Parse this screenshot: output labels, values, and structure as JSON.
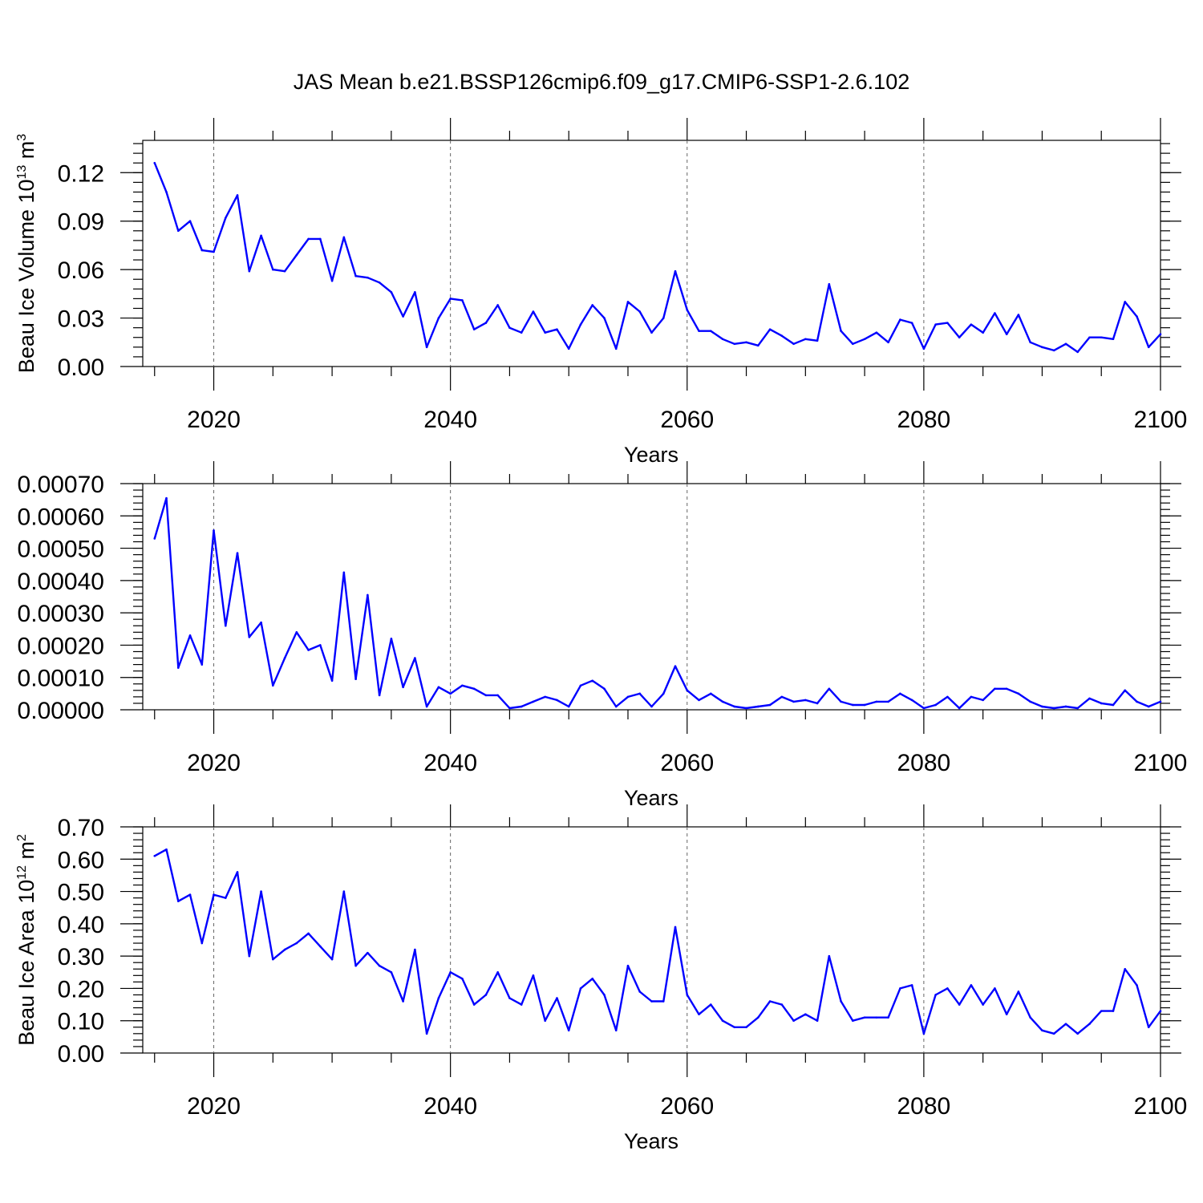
{
  "title": "JAS Mean b.e21.BSSP126cmip6.f09_g17.CMIP6-SSP1-2.6.102",
  "colors": {
    "series": "#0000ff",
    "grid": "#666666",
    "frame": "#000000"
  },
  "chart_data": [
    {
      "type": "line",
      "ylabel": "Beau Ice Volume 10",
      "ylabel_sup": "13",
      "ylabel_unit": " m",
      "ylabel_unit_sup": "3",
      "xlabel": "Years",
      "xlim": [
        2014,
        2100
      ],
      "ylim": [
        0,
        0.14
      ],
      "xticks": [
        2020,
        2040,
        2060,
        2080,
        2100
      ],
      "xtick_labels": [
        "2020",
        "2040",
        "2060",
        "2080",
        "2100"
      ],
      "yticks": [
        0,
        0.03,
        0.06,
        0.09,
        0.12
      ],
      "ytick_labels": [
        "0.00",
        "0.03",
        "0.06",
        "0.09",
        "0.12"
      ],
      "grid": "x-dashed",
      "x": [
        2015,
        2016,
        2017,
        2018,
        2019,
        2020,
        2021,
        2022,
        2023,
        2024,
        2025,
        2026,
        2027,
        2028,
        2029,
        2030,
        2031,
        2032,
        2033,
        2034,
        2035,
        2036,
        2037,
        2038,
        2039,
        2040,
        2041,
        2042,
        2043,
        2044,
        2045,
        2046,
        2047,
        2048,
        2049,
        2050,
        2051,
        2052,
        2053,
        2054,
        2055,
        2056,
        2057,
        2058,
        2059,
        2060,
        2061,
        2062,
        2063,
        2064,
        2065,
        2066,
        2067,
        2068,
        2069,
        2070,
        2071,
        2072,
        2073,
        2074,
        2075,
        2076,
        2077,
        2078,
        2079,
        2080,
        2081,
        2082,
        2083,
        2084,
        2085,
        2086,
        2087,
        2088,
        2089,
        2090,
        2091,
        2092,
        2093,
        2094,
        2095,
        2096,
        2097,
        2098,
        2099,
        2100
      ],
      "values": [
        0.126,
        0.108,
        0.084,
        0.09,
        0.072,
        0.071,
        0.092,
        0.106,
        0.059,
        0.081,
        0.06,
        0.059,
        0.069,
        0.079,
        0.079,
        0.053,
        0.08,
        0.056,
        0.055,
        0.052,
        0.046,
        0.031,
        0.046,
        0.012,
        0.03,
        0.042,
        0.041,
        0.023,
        0.027,
        0.038,
        0.024,
        0.021,
        0.034,
        0.021,
        0.023,
        0.011,
        0.026,
        0.038,
        0.03,
        0.011,
        0.04,
        0.034,
        0.021,
        0.03,
        0.059,
        0.035,
        0.022,
        0.022,
        0.017,
        0.014,
        0.015,
        0.013,
        0.023,
        0.019,
        0.014,
        0.017,
        0.016,
        0.051,
        0.022,
        0.014,
        0.017,
        0.021,
        0.015,
        0.029,
        0.027,
        0.011,
        0.026,
        0.027,
        0.018,
        0.026,
        0.021,
        0.033,
        0.02,
        0.032,
        0.015,
        0.012,
        0.01,
        0.014,
        0.009,
        0.018,
        0.018,
        0.017,
        0.04,
        0.031,
        0.012,
        0.02
      ]
    },
    {
      "type": "line",
      "ylabel": "",
      "xlabel": "Years",
      "xlim": [
        2014,
        2100
      ],
      "ylim": [
        0,
        0.0007
      ],
      "xticks": [
        2020,
        2040,
        2060,
        2080,
        2100
      ],
      "xtick_labels": [
        "2020",
        "2040",
        "2060",
        "2080",
        "2100"
      ],
      "yticks": [
        0,
        0.0001,
        0.0002,
        0.0003,
        0.0004,
        0.0005,
        0.0006,
        0.0007
      ],
      "ytick_labels": [
        "0.00000",
        "0.00010",
        "0.00020",
        "0.00030",
        "0.00040",
        "0.00050",
        "0.00060",
        "0.00070"
      ],
      "grid": "x-dashed",
      "x": [
        2015,
        2016,
        2017,
        2018,
        2019,
        2020,
        2021,
        2022,
        2023,
        2024,
        2025,
        2026,
        2027,
        2028,
        2029,
        2030,
        2031,
        2032,
        2033,
        2034,
        2035,
        2036,
        2037,
        2038,
        2039,
        2040,
        2041,
        2042,
        2043,
        2044,
        2045,
        2046,
        2047,
        2048,
        2049,
        2050,
        2051,
        2052,
        2053,
        2054,
        2055,
        2056,
        2057,
        2058,
        2059,
        2060,
        2061,
        2062,
        2063,
        2064,
        2065,
        2066,
        2067,
        2068,
        2069,
        2070,
        2071,
        2072,
        2073,
        2074,
        2075,
        2076,
        2077,
        2078,
        2079,
        2080,
        2081,
        2082,
        2083,
        2084,
        2085,
        2086,
        2087,
        2088,
        2089,
        2090,
        2091,
        2092,
        2093,
        2094,
        2095,
        2096,
        2097,
        2098,
        2099,
        2100
      ],
      "values": [
        0.00053,
        0.000655,
        0.00013,
        0.00023,
        0.00014,
        0.000555,
        0.00026,
        0.000485,
        0.000225,
        0.00027,
        7.5e-05,
        0.00016,
        0.00024,
        0.000185,
        0.0002,
        9e-05,
        0.000425,
        9.5e-05,
        0.000355,
        4.5e-05,
        0.00022,
        7e-05,
        0.00016,
        1e-05,
        7e-05,
        5e-05,
        7.5e-05,
        6.5e-05,
        4.5e-05,
        4.5e-05,
        5e-06,
        1e-05,
        2.5e-05,
        4e-05,
        3e-05,
        1e-05,
        7.5e-05,
        9e-05,
        6.5e-05,
        1e-05,
        4e-05,
        5e-05,
        1e-05,
        5e-05,
        0.000135,
        6e-05,
        3e-05,
        5e-05,
        2.5e-05,
        1e-05,
        5e-06,
        1e-05,
        1.5e-05,
        4e-05,
        2.5e-05,
        3e-05,
        2e-05,
        6.5e-05,
        2.5e-05,
        1.5e-05,
        1.5e-05,
        2.5e-05,
        2.5e-05,
        5e-05,
        3e-05,
        5e-06,
        1.5e-05,
        4e-05,
        5e-06,
        4e-05,
        3e-05,
        6.5e-05,
        6.5e-05,
        5e-05,
        2.5e-05,
        1e-05,
        5e-06,
        1e-05,
        5e-06,
        3.5e-05,
        2e-05,
        1.5e-05,
        6e-05,
        2.5e-05,
        1e-05,
        2.5e-05
      ]
    },
    {
      "type": "line",
      "ylabel": "Beau Ice Area 10",
      "ylabel_sup": "12",
      "ylabel_unit": " m",
      "ylabel_unit_sup": "2",
      "xlabel": "Years",
      "xlim": [
        2014,
        2100
      ],
      "ylim": [
        0,
        0.7
      ],
      "xticks": [
        2020,
        2040,
        2060,
        2080,
        2100
      ],
      "xtick_labels": [
        "2020",
        "2040",
        "2060",
        "2080",
        "2100"
      ],
      "yticks": [
        0,
        0.1,
        0.2,
        0.3,
        0.4,
        0.5,
        0.6,
        0.7
      ],
      "ytick_labels": [
        "0.00",
        "0.10",
        "0.20",
        "0.30",
        "0.40",
        "0.50",
        "0.60",
        "0.70"
      ],
      "grid": "x-dashed",
      "x": [
        2015,
        2016,
        2017,
        2018,
        2019,
        2020,
        2021,
        2022,
        2023,
        2024,
        2025,
        2026,
        2027,
        2028,
        2029,
        2030,
        2031,
        2032,
        2033,
        2034,
        2035,
        2036,
        2037,
        2038,
        2039,
        2040,
        2041,
        2042,
        2043,
        2044,
        2045,
        2046,
        2047,
        2048,
        2049,
        2050,
        2051,
        2052,
        2053,
        2054,
        2055,
        2056,
        2057,
        2058,
        2059,
        2060,
        2061,
        2062,
        2063,
        2064,
        2065,
        2066,
        2067,
        2068,
        2069,
        2070,
        2071,
        2072,
        2073,
        2074,
        2075,
        2076,
        2077,
        2078,
        2079,
        2080,
        2081,
        2082,
        2083,
        2084,
        2085,
        2086,
        2087,
        2088,
        2089,
        2090,
        2091,
        2092,
        2093,
        2094,
        2095,
        2096,
        2097,
        2098,
        2099,
        2100
      ],
      "values": [
        0.61,
        0.63,
        0.47,
        0.49,
        0.34,
        0.49,
        0.48,
        0.56,
        0.3,
        0.5,
        0.29,
        0.32,
        0.34,
        0.37,
        0.33,
        0.29,
        0.5,
        0.27,
        0.31,
        0.27,
        0.25,
        0.16,
        0.32,
        0.06,
        0.17,
        0.25,
        0.23,
        0.15,
        0.18,
        0.25,
        0.17,
        0.15,
        0.24,
        0.1,
        0.17,
        0.07,
        0.2,
        0.23,
        0.18,
        0.07,
        0.27,
        0.19,
        0.16,
        0.16,
        0.39,
        0.18,
        0.12,
        0.15,
        0.1,
        0.08,
        0.08,
        0.11,
        0.16,
        0.15,
        0.1,
        0.12,
        0.1,
        0.3,
        0.16,
        0.1,
        0.11,
        0.11,
        0.11,
        0.2,
        0.21,
        0.06,
        0.18,
        0.2,
        0.15,
        0.21,
        0.15,
        0.2,
        0.12,
        0.19,
        0.11,
        0.07,
        0.06,
        0.09,
        0.06,
        0.09,
        0.13,
        0.13,
        0.26,
        0.21,
        0.08,
        0.13
      ]
    }
  ]
}
